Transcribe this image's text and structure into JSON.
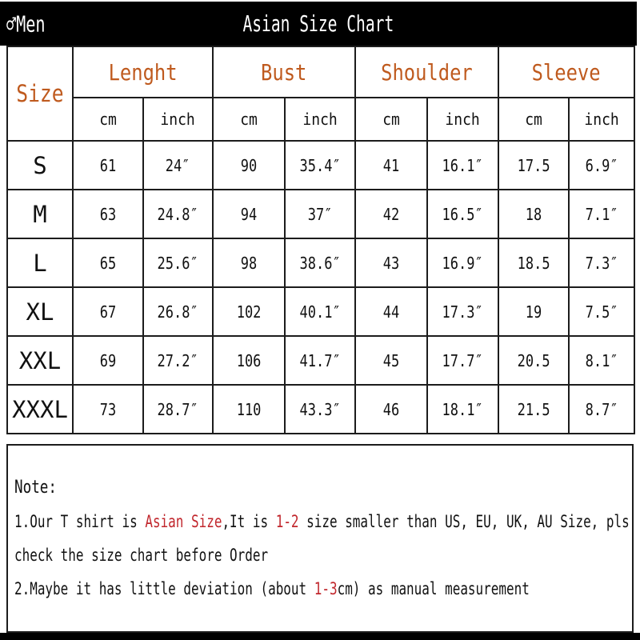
{
  "title_bar": {
    "gender_symbol": "♂",
    "gender_label": "Men",
    "title": "Asian Size Chart"
  },
  "table": {
    "corner_label": "Size",
    "groups": [
      {
        "label": "Lenght"
      },
      {
        "label": "Bust"
      },
      {
        "label": "Shoulder"
      },
      {
        "label": "Sleeve"
      }
    ],
    "unit_headers": [
      "cm",
      "inch"
    ],
    "rows": [
      {
        "size": "S",
        "values": [
          "61",
          "24″",
          "90",
          "35.4″",
          "41",
          "16.1″",
          "17.5",
          "6.9″"
        ]
      },
      {
        "size": "M",
        "values": [
          "63",
          "24.8″",
          "94",
          "37″",
          "42",
          "16.5″",
          "18",
          "7.1″"
        ]
      },
      {
        "size": "L",
        "values": [
          "65",
          "25.6″",
          "98",
          "38.6″",
          "43",
          "16.9″",
          "18.5",
          "7.3″"
        ]
      },
      {
        "size": "XL",
        "values": [
          "67",
          "26.8″",
          "102",
          "40.1″",
          "44",
          "17.3″",
          "19",
          "7.5″"
        ]
      },
      {
        "size": "XXL",
        "values": [
          "69",
          "27.2″",
          "106",
          "41.7″",
          "45",
          "17.7″",
          "20.5",
          "8.1″"
        ]
      },
      {
        "size": "XXXL",
        "values": [
          "73",
          "28.7″",
          "110",
          "43.3″",
          "46",
          "18.1″",
          "21.5",
          "8.7″"
        ]
      }
    ]
  },
  "note": {
    "heading": "Note:",
    "lines": [
      [
        {
          "text": "1.Our T shirt is "
        },
        {
          "text": "Asian Size",
          "red": true
        },
        {
          "text": ",It is "
        },
        {
          "text": "1-2",
          "red": true
        },
        {
          "text": " size smaller than US, EU, UK, AU Size, pls"
        }
      ],
      [
        {
          "text": "check the size chart before Order"
        }
      ],
      [
        {
          "text": "2.Maybe it has little deviation (about "
        },
        {
          "text": "1-3",
          "red": true
        },
        {
          "text": "cm) as manual measurement"
        }
      ]
    ]
  },
  "colors": {
    "accent_orange": "#bf5a1e",
    "accent_red": "#c1272d",
    "bar_black": "#000000",
    "grid_line": "#1c1c1c"
  },
  "chart_data": {
    "type": "table",
    "title": "Asian Size Chart",
    "columns": [
      "Size",
      "Lenght cm",
      "Lenght inch",
      "Bust cm",
      "Bust inch",
      "Shoulder cm",
      "Shoulder inch",
      "Sleeve cm",
      "Sleeve inch"
    ],
    "rows": [
      [
        "S",
        61,
        24.0,
        90,
        35.4,
        41,
        16.1,
        17.5,
        6.9
      ],
      [
        "M",
        63,
        24.8,
        94,
        37.0,
        42,
        16.5,
        18.0,
        7.1
      ],
      [
        "L",
        65,
        25.6,
        98,
        38.6,
        43,
        16.9,
        18.5,
        7.3
      ],
      [
        "XL",
        67,
        26.8,
        102,
        40.1,
        44,
        17.3,
        19.0,
        7.5
      ],
      [
        "XXL",
        69,
        27.2,
        106,
        41.7,
        45,
        17.7,
        20.5,
        8.1
      ],
      [
        "XXXL",
        73,
        28.7,
        110,
        43.3,
        46,
        18.1,
        21.5,
        8.7
      ]
    ]
  }
}
